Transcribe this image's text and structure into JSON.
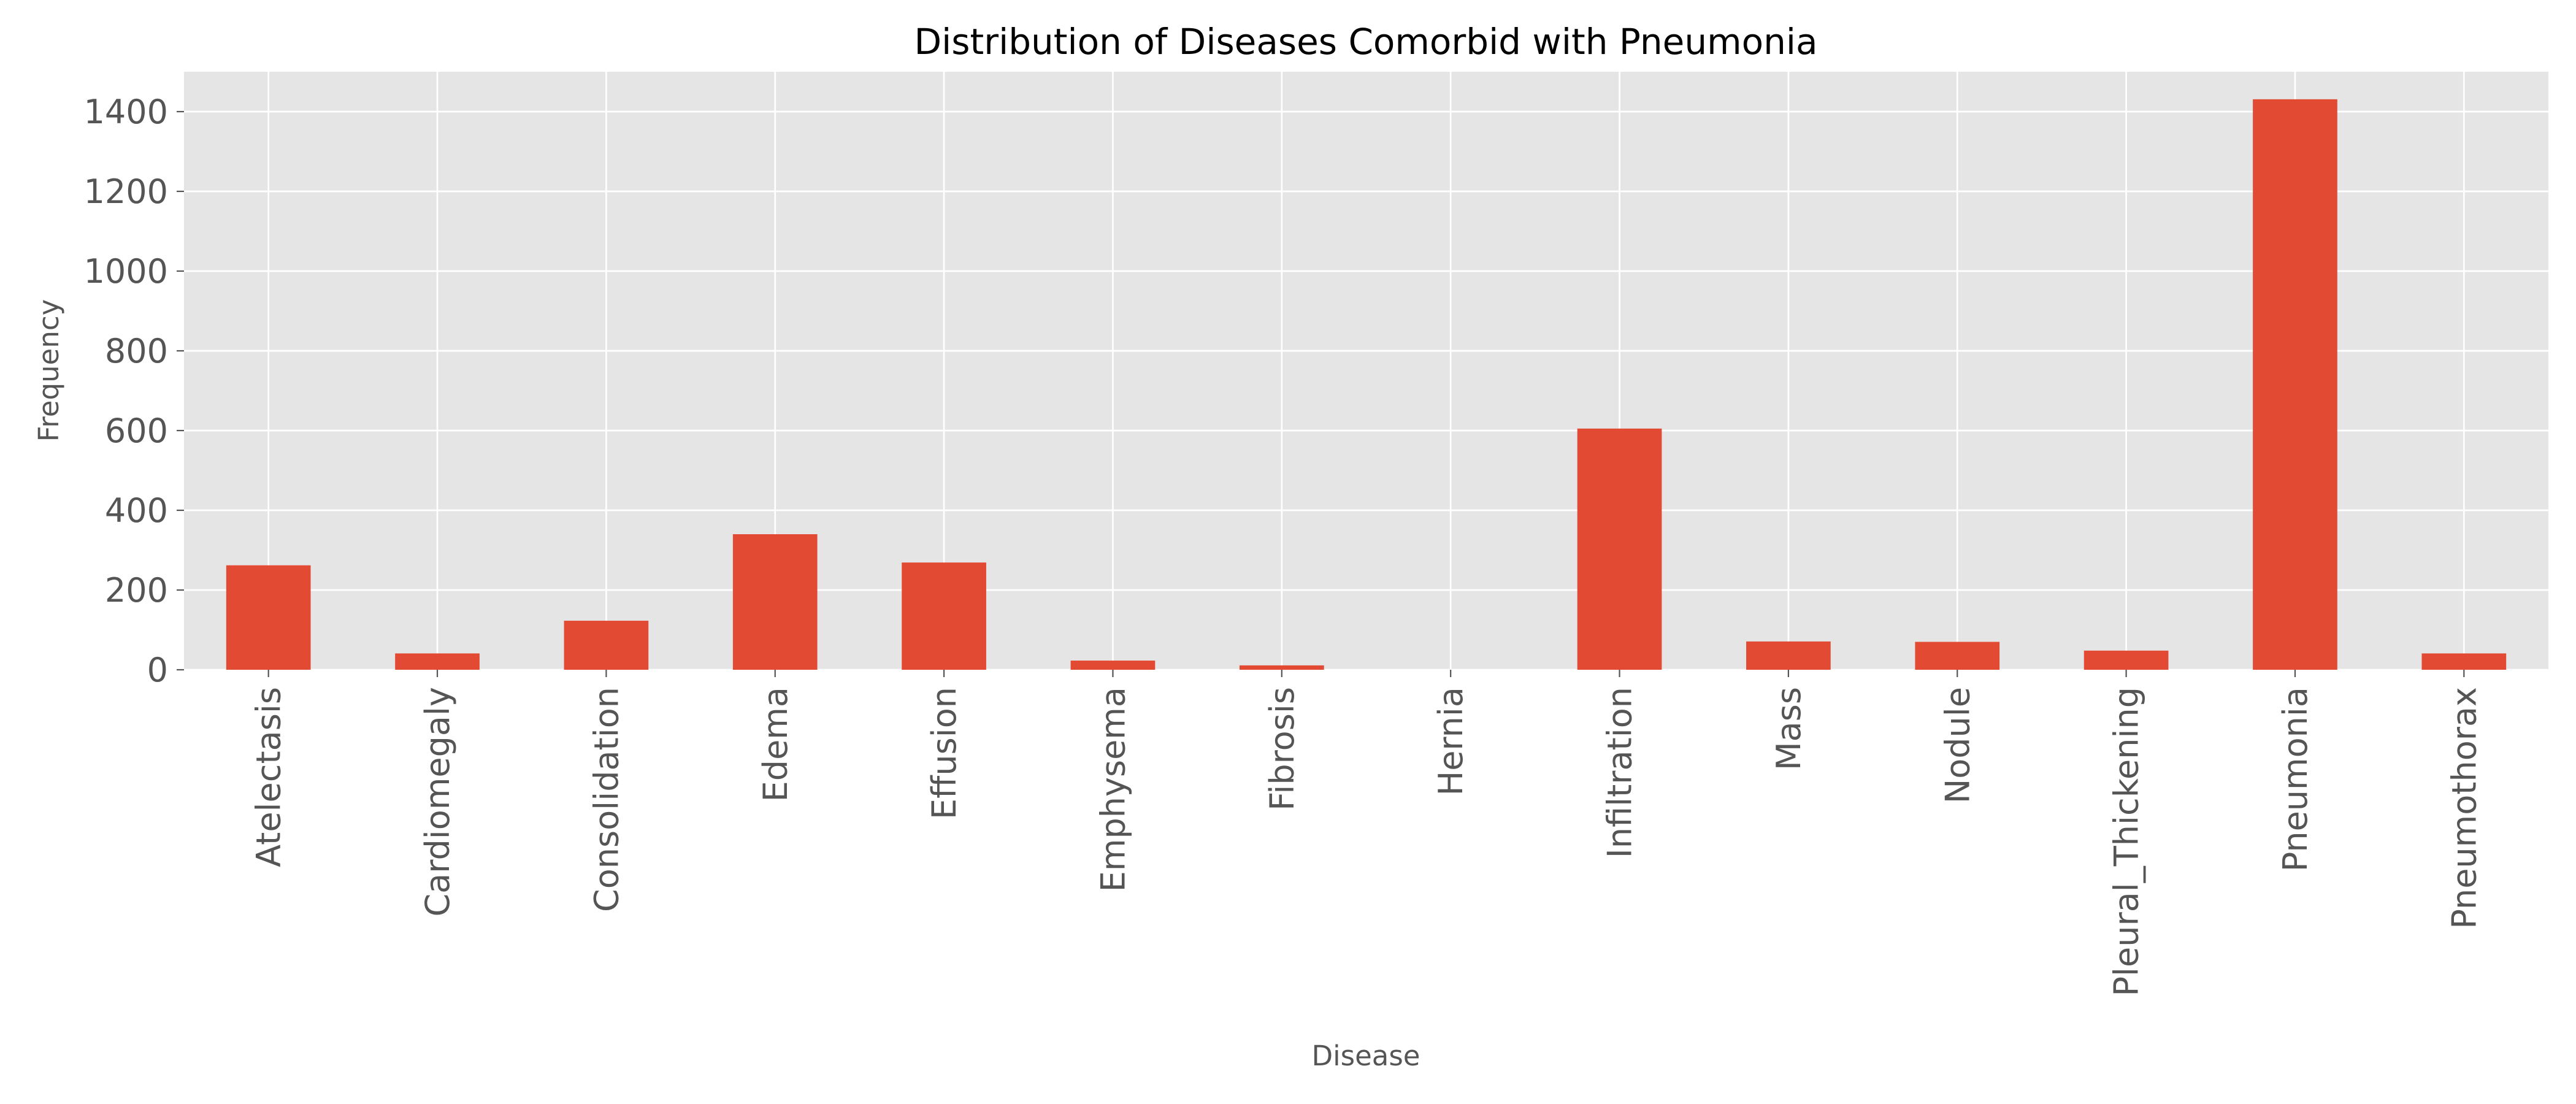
{
  "chart_data": {
    "type": "bar",
    "title": "Distribution of Diseases Comorbid with Pneumonia",
    "xlabel": "Disease",
    "ylabel": "Frequency",
    "categories": [
      "Atelectasis",
      "Cardiomegaly",
      "Consolidation",
      "Edema",
      "Effusion",
      "Emphysema",
      "Fibrosis",
      "Hernia",
      "Infiltration",
      "Mass",
      "Nodule",
      "Pleural_Thickening",
      "Pneumonia",
      "Pneumothorax"
    ],
    "values": [
      262,
      41,
      123,
      340,
      269,
      23,
      11,
      0,
      605,
      71,
      70,
      48,
      1431,
      41
    ],
    "ylim": [
      0,
      1500
    ],
    "yticks": [
      0,
      200,
      400,
      600,
      800,
      1000,
      1200,
      1400
    ],
    "grid": true,
    "legend": "none",
    "colors": {
      "bar": "#e24a33",
      "plot_background": "#e5e5e5",
      "grid": "#ffffff",
      "tick_label": "#555555",
      "title": "#000000"
    }
  }
}
